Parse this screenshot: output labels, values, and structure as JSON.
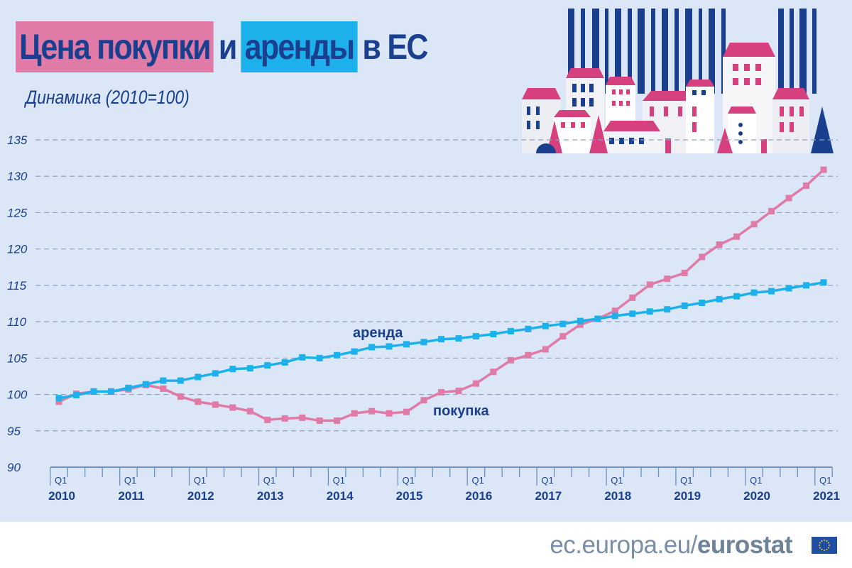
{
  "header": {
    "title_parts": [
      "Цена покупки",
      "и",
      "аренды",
      "в ЕС"
    ],
    "subtitle": "Динамика (2010=100)"
  },
  "footer": {
    "url_prefix": "ec.europa.eu/",
    "url_brand": "eurostat"
  },
  "colors": {
    "background": "#dbe7f7",
    "purchase": "#e07aa6",
    "rent": "#1db1eb",
    "text": "#1b3f8f"
  },
  "chart_data": {
    "type": "line",
    "title": "Цена покупки и аренды в ЕС",
    "subtitle": "Динамика (2010=100)",
    "ylim": [
      90,
      135
    ],
    "yticks": [
      90,
      95,
      100,
      105,
      110,
      115,
      120,
      125,
      130,
      135
    ],
    "grid": true,
    "x_start": "2010 Q1",
    "x_end": "2021 Q1",
    "x_tick_years": [
      "2010",
      "2011",
      "2012",
      "2013",
      "2014",
      "2015",
      "2016",
      "2017",
      "2018",
      "2019",
      "2020",
      "2021"
    ],
    "x_tick_quarter_label": "Q1",
    "series": [
      {
        "name": "покупка",
        "color": "#e07aa6",
        "values": [
          99.0,
          100.1,
          100.4,
          100.4,
          100.7,
          101.3,
          100.8,
          99.7,
          99.0,
          98.6,
          98.2,
          97.7,
          96.5,
          96.7,
          96.8,
          96.4,
          96.4,
          97.4,
          97.7,
          97.4,
          97.6,
          99.2,
          100.3,
          100.5,
          101.5,
          103.1,
          104.7,
          105.4,
          106.2,
          108.0,
          109.6,
          110.4,
          111.5,
          113.3,
          115.1,
          115.9,
          116.7,
          118.9,
          120.6,
          121.7,
          123.4,
          125.2,
          127.0,
          128.7,
          130.9
        ]
      },
      {
        "name": "аренда",
        "color": "#1db1eb",
        "values": [
          99.5,
          99.9,
          100.4,
          100.4,
          100.9,
          101.4,
          101.9,
          101.9,
          102.4,
          102.9,
          103.5,
          103.6,
          104.0,
          104.4,
          105.1,
          105.0,
          105.4,
          105.9,
          106.5,
          106.6,
          106.9,
          107.2,
          107.6,
          107.7,
          108.0,
          108.3,
          108.7,
          109.0,
          109.4,
          109.7,
          110.1,
          110.4,
          110.8,
          111.1,
          111.4,
          111.7,
          112.2,
          112.6,
          113.1,
          113.5,
          114.0,
          114.2,
          114.6,
          115.0,
          115.4
        ]
      }
    ]
  }
}
